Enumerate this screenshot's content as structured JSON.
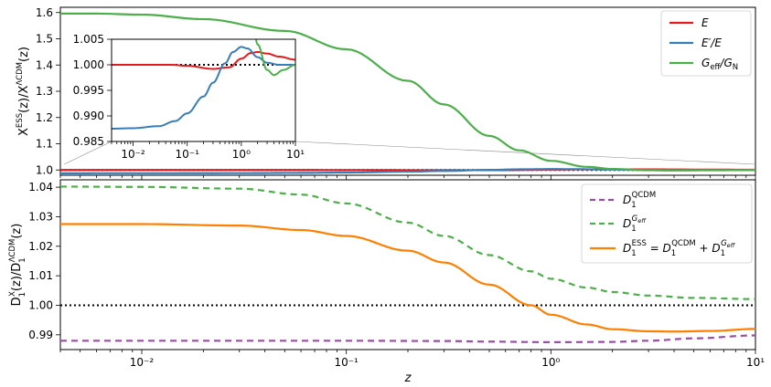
{
  "chart_data": [
    {
      "type": "line",
      "panel": "top",
      "xlabel": "",
      "ylabel": "X^ESS(z)/X^ΛCDM(z)",
      "xscale": "log",
      "xlim": [
        0.004,
        10
      ],
      "ylim": [
        0.98,
        1.62
      ],
      "yticks": [
        "1.0",
        "1.1",
        "1.2",
        "1.3",
        "1.4",
        "1.5",
        "1.6"
      ],
      "legend_position": "top-right",
      "series": [
        {
          "name": "E",
          "color": "#e41a1c",
          "style": "solid",
          "x": [
            0.004,
            0.01,
            0.05,
            0.1,
            0.3,
            0.6,
            1.0,
            1.5,
            2,
            3,
            5,
            10
          ],
          "y": [
            1.0,
            1.0,
            1.0,
            0.9998,
            0.9992,
            0.9995,
            1.0012,
            1.0023,
            1.0025,
            1.0022,
            1.0016,
            1.001
          ]
        },
        {
          "name": "E′/E",
          "color": "#377eb8",
          "style": "solid",
          "x": [
            0.004,
            0.01,
            0.03,
            0.06,
            0.1,
            0.2,
            0.3,
            0.5,
            0.7,
            1.0,
            1.3,
            2,
            3,
            5,
            10
          ],
          "y": [
            0.9875,
            0.9876,
            0.988,
            0.989,
            0.9905,
            0.9938,
            0.9965,
            1.0003,
            1.0025,
            1.0035,
            1.0032,
            1.0015,
            1.0004,
            1.0,
            1.0
          ]
        },
        {
          "name": "G_eff/G_N",
          "color": "#4daf4a",
          "style": "solid",
          "x": [
            0.004,
            0.006,
            0.01,
            0.02,
            0.05,
            0.1,
            0.2,
            0.3,
            0.5,
            0.7,
            1.0,
            1.5,
            2,
            3,
            4,
            6,
            10
          ],
          "y": [
            1.596,
            1.596,
            1.592,
            1.575,
            1.53,
            1.46,
            1.34,
            1.25,
            1.13,
            1.075,
            1.035,
            1.012,
            1.004,
            0.999,
            0.998,
            0.999,
            1.0
          ]
        }
      ],
      "reference_line": {
        "y": 1.0,
        "style": "dotted"
      }
    },
    {
      "type": "line",
      "panel": "inset",
      "xscale": "log",
      "xlim": [
        0.004,
        10
      ],
      "ylim": [
        0.985,
        1.005
      ],
      "yticks": [
        "0.985",
        "0.990",
        "0.995",
        "1.000",
        "1.005"
      ],
      "xticks": [
        "10⁻²",
        "10⁻¹",
        "10⁰",
        "10¹"
      ],
      "series_ref": [
        "E",
        "E′/E",
        "G_eff/G_N"
      ],
      "reference_line": {
        "y": 1.0,
        "style": "dotted"
      }
    },
    {
      "type": "line",
      "panel": "bottom",
      "xlabel": "z",
      "ylabel": "D₁^X(z)/D₁^ΛCDM(z)",
      "xscale": "log",
      "xlim": [
        0.004,
        10
      ],
      "ylim": [
        0.985,
        1.0425
      ],
      "yticks": [
        "0.99",
        "1.00",
        "1.01",
        "1.02",
        "1.03",
        "1.04"
      ],
      "xticks": [
        "10⁻²",
        "10⁻¹",
        "10⁰",
        "10¹"
      ],
      "legend_position": "top-right",
      "series": [
        {
          "name": "D₁^QCDM",
          "color": "#984ea3",
          "style": "dashed",
          "x": [
            0.004,
            0.01,
            0.05,
            0.1,
            0.3,
            0.5,
            1.0,
            2,
            3,
            5,
            10
          ],
          "y": [
            0.988,
            0.988,
            0.988,
            0.988,
            0.9879,
            0.9877,
            0.9875,
            0.9876,
            0.988,
            0.9888,
            0.9898
          ]
        },
        {
          "name": "D₁^G_eff",
          "color": "#4daf4a",
          "style": "dashed",
          "x": [
            0.004,
            0.01,
            0.03,
            0.06,
            0.1,
            0.2,
            0.3,
            0.5,
            0.8,
            1.0,
            1.5,
            2,
            3,
            5,
            10
          ],
          "y": [
            1.0402,
            1.0401,
            1.0395,
            1.0375,
            1.0345,
            1.028,
            1.0235,
            1.017,
            1.0115,
            1.009,
            1.006,
            1.0045,
            1.0033,
            1.0025,
            1.0021
          ]
        },
        {
          "name": "D₁^ESS = D₁^QCDM + D₁^G_eff",
          "color": "#ff7f00",
          "style": "solid",
          "x": [
            0.004,
            0.01,
            0.03,
            0.06,
            0.1,
            0.2,
            0.3,
            0.5,
            0.8,
            1.0,
            1.5,
            2,
            3,
            4,
            6,
            10
          ],
          "y": [
            1.0275,
            1.0275,
            1.027,
            1.0255,
            1.0235,
            1.0185,
            1.0145,
            1.007,
            1.0,
            0.9968,
            0.9935,
            0.9919,
            0.9912,
            0.9911,
            0.9913,
            0.992
          ]
        }
      ],
      "reference_line": {
        "y": 1.0,
        "style": "dotted"
      }
    }
  ],
  "legend": {
    "top": [
      {
        "label": "E",
        "color": "#e41a1c",
        "style": "solid"
      },
      {
        "label": "E′/E",
        "color": "#377eb8",
        "style": "solid"
      },
      {
        "label": "G_eff/G_N",
        "color": "#4daf4a",
        "style": "solid"
      }
    ],
    "bottom": [
      {
        "label": "D₁^QCDM",
        "color": "#984ea3",
        "style": "dashed"
      },
      {
        "label": "D₁^G_eff",
        "color": "#4daf4a",
        "style": "dashed"
      },
      {
        "label": "D₁^ESS = D₁^QCDM + D₁^G_eff",
        "color": "#ff7f00",
        "style": "solid"
      }
    ]
  }
}
